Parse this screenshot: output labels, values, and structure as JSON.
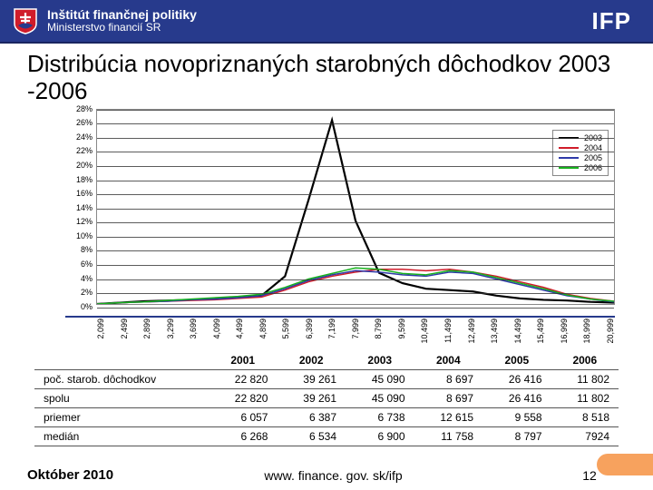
{
  "header": {
    "line1": "Inštitút finančnej politiky",
    "line2": "Ministerstvo financií SR",
    "ifp": "IFP",
    "bg": "#273a8c"
  },
  "title": "Distribúcia novopriznaných starobných dôchodkov 2003 -2006",
  "chart": {
    "type": "line",
    "ylim": [
      0,
      28
    ],
    "ytick_step": 2,
    "yticks": [
      "28%",
      "26%",
      "24%",
      "22%",
      "20%",
      "18%",
      "16%",
      "14%",
      "12%",
      "10%",
      "8%",
      "6%",
      "4%",
      "2%",
      "0%"
    ],
    "xticks": [
      "2,099",
      "2,499",
      "2,899",
      "3,299",
      "3,699",
      "4,099",
      "4,499",
      "4,899",
      "5,599",
      "6,399",
      "7,199",
      "7,999",
      "8,799",
      "9,599",
      "10,499",
      "11,499",
      "12,499",
      "13,499",
      "14,499",
      "15,499",
      "16,999",
      "18,999",
      "20,999"
    ],
    "series": [
      {
        "name": "2003",
        "color": "#000000",
        "width": 2.2,
        "values": [
          0,
          0.2,
          0.4,
          0.5,
          0.6,
          0.7,
          0.9,
          1.2,
          4,
          15,
          26.5,
          12,
          4.5,
          3,
          2.2,
          2.0,
          1.8,
          1.2,
          0.8,
          0.6,
          0.5,
          0.3,
          0.2
        ]
      },
      {
        "name": "2004",
        "color": "#d01c2a",
        "width": 1.5,
        "values": [
          0,
          0.2,
          0.3,
          0.4,
          0.5,
          0.6,
          0.8,
          1.0,
          2.0,
          3.2,
          4.0,
          4.6,
          5.0,
          5.0,
          4.8,
          5.0,
          4.6,
          4.0,
          3.2,
          2.4,
          1.4,
          0.8,
          0.4
        ]
      },
      {
        "name": "2005",
        "color": "#2f3aa8",
        "width": 1.5,
        "values": [
          0,
          0.2,
          0.3,
          0.4,
          0.6,
          0.7,
          0.9,
          1.2,
          2.2,
          3.4,
          4.2,
          4.8,
          4.6,
          4.2,
          4.0,
          4.6,
          4.4,
          3.6,
          2.8,
          2.0,
          1.2,
          0.7,
          0.3
        ]
      },
      {
        "name": "2006",
        "color": "#17b11e",
        "width": 1.5,
        "values": [
          0,
          0.2,
          0.3,
          0.5,
          0.7,
          0.9,
          1.1,
          1.4,
          2.4,
          3.6,
          4.4,
          5.2,
          5.0,
          4.4,
          4.2,
          4.8,
          4.6,
          3.8,
          3.0,
          2.2,
          1.3,
          0.7,
          0.4
        ]
      }
    ],
    "legend_position": "top-right",
    "grid_color": "#333333",
    "background_color": "#ffffff"
  },
  "table": {
    "columns": [
      "",
      "2001",
      "2002",
      "2003",
      "2004",
      "2005",
      "2006"
    ],
    "rows": [
      [
        "poč. starob. dôchodkov",
        "22 820",
        "39 261",
        "45 090",
        "8 697",
        "26 416",
        "11 802"
      ],
      [
        "spolu",
        "22 820",
        "39 261",
        "45 090",
        "8 697",
        "26 416",
        "11 802"
      ],
      [
        "priemer",
        "6 057",
        "6 387",
        "6 738",
        "12 615",
        "9 558",
        "8 518"
      ],
      [
        "medián",
        "6 268",
        "6 534",
        "6 900",
        "11 758",
        "8 797",
        "7924"
      ]
    ]
  },
  "footer": {
    "date": "Október 2010",
    "url": "www. finance. gov. sk/ifp",
    "page": "12"
  }
}
